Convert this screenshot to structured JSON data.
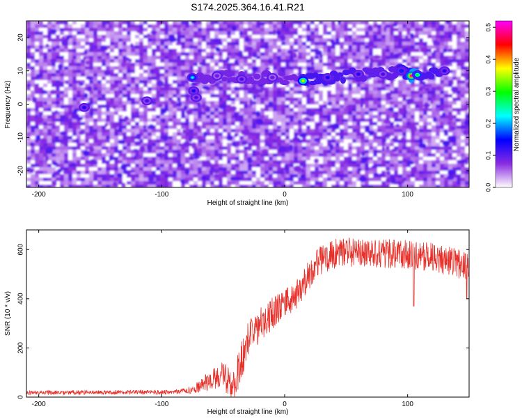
{
  "title": "S174.2025.364.16.41.R21",
  "chart_data": [
    {
      "type": "heatmap",
      "xlabel": "Height of straight line (km)",
      "ylabel": "Frequency (Hz)",
      "xlim": [
        -210,
        150
      ],
      "ylim": [
        -25,
        25
      ],
      "xticks": [
        -200,
        -100,
        0,
        100
      ],
      "yticks": [
        20,
        10,
        0,
        -10,
        -20
      ],
      "colorbar": {
        "label": "Normalized spectral amplitude",
        "range": [
          0,
          0.52
        ],
        "ticks": [
          0.0,
          0.1,
          0.2,
          0.3,
          0.4,
          0.5
        ],
        "colormap": [
          "#ffffff",
          "#8a2be2",
          "#0000ff",
          "#00ffff",
          "#00ff00",
          "#ffff00",
          "#ff0000",
          "#ff00ff"
        ]
      },
      "background_amplitude": [
        0.02,
        0.1
      ],
      "ridge": [
        {
          "x": -75,
          "y": 8.0,
          "amp": 0.22
        },
        {
          "x": -55,
          "y": 8.5,
          "amp": 0.1
        },
        {
          "x": -35,
          "y": 7.5,
          "amp": 0.12
        },
        {
          "x": -10,
          "y": 8.0,
          "amp": 0.1
        },
        {
          "x": 15,
          "y": 7.0,
          "amp": 0.38
        },
        {
          "x": 35,
          "y": 8.0,
          "amp": 0.15
        },
        {
          "x": 60,
          "y": 9.0,
          "amp": 0.14
        },
        {
          "x": 80,
          "y": 9.0,
          "amp": 0.12
        },
        {
          "x": 95,
          "y": 10.0,
          "amp": 0.16
        },
        {
          "x": 103,
          "y": 8.5,
          "amp": 0.5
        },
        {
          "x": 108,
          "y": 8.8,
          "amp": 0.3
        },
        {
          "x": 130,
          "y": 10.0,
          "amp": 0.14
        }
      ],
      "spots": [
        {
          "x": -74,
          "y": 4.0,
          "amp": 0.14
        },
        {
          "x": -72,
          "y": 2.0,
          "amp": 0.12
        },
        {
          "x": -163,
          "y": -1.0,
          "amp": 0.14
        },
        {
          "x": -112,
          "y": 1.0,
          "amp": 0.12
        }
      ]
    },
    {
      "type": "line",
      "xlabel": "Height of straight line (km)",
      "ylabel": "SNR (10 * v/v)",
      "xlim": [
        -210,
        150
      ],
      "ylim": [
        0,
        680
      ],
      "xticks": [
        -200,
        -100,
        0,
        100
      ],
      "yticks": [
        0,
        200,
        400,
        600
      ],
      "color": "#e8302a",
      "trend": [
        [
          -210,
          18
        ],
        [
          -90,
          20
        ],
        [
          -75,
          30
        ],
        [
          -60,
          70
        ],
        [
          -50,
          90
        ],
        [
          -42,
          40
        ],
        [
          -35,
          150
        ],
        [
          -30,
          230
        ],
        [
          -20,
          290
        ],
        [
          -10,
          340
        ],
        [
          0,
          380
        ],
        [
          10,
          420
        ],
        [
          20,
          500
        ],
        [
          30,
          560
        ],
        [
          45,
          590
        ],
        [
          60,
          590
        ],
        [
          80,
          585
        ],
        [
          100,
          580
        ],
        [
          120,
          570
        ],
        [
          140,
          545
        ],
        [
          150,
          530
        ]
      ],
      "noise": [
        [
          -210,
          8
        ],
        [
          -80,
          10
        ],
        [
          -60,
          40
        ],
        [
          -35,
          80
        ],
        [
          0,
          60
        ],
        [
          30,
          60
        ],
        [
          150,
          60
        ]
      ],
      "notable_dips": [
        [
          105,
          370
        ],
        [
          148,
          400
        ]
      ]
    }
  ]
}
